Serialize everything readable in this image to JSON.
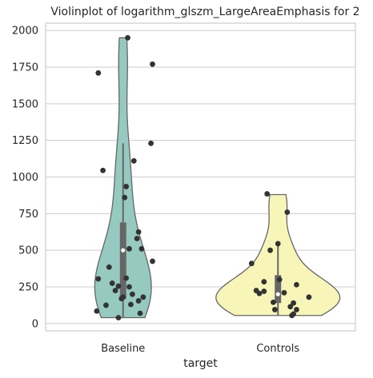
{
  "chart_data": {
    "type": "violin",
    "title": "Violinplot of logarithm_glszm_LargeAreaEmphasis for 2",
    "xlabel": "target",
    "ylabel": "",
    "categories": [
      "Baseline",
      "Controls"
    ],
    "y_ticks": [
      0,
      250,
      500,
      750,
      1000,
      1250,
      1500,
      1750,
      2000
    ],
    "ylim": [
      -50,
      2050
    ],
    "grid": "horizontal",
    "colors": {
      "Baseline": "#96cac0",
      "Controls": "#f7f6b8",
      "outline": "#666666",
      "points": "#333333",
      "grid": "#cccccc",
      "spine": "#cccccc"
    },
    "series": [
      {
        "name": "Baseline",
        "range": [
          40,
          1950
        ],
        "box": {
          "q1": 170,
          "median": 500,
          "q3": 690,
          "whisker_low": 40,
          "whisker_high": 1230
        },
        "points": [
          [
            0.03,
            1950
          ],
          [
            -0.16,
            1710
          ],
          [
            0.19,
            1770
          ],
          [
            0.18,
            1230
          ],
          [
            0.07,
            1110
          ],
          [
            -0.13,
            1045
          ],
          [
            0.02,
            935
          ],
          [
            0.01,
            860
          ],
          [
            0.1,
            625
          ],
          [
            0.09,
            580
          ],
          [
            0.04,
            510
          ],
          [
            0.12,
            510
          ],
          [
            0.19,
            425
          ],
          [
            -0.09,
            385
          ],
          [
            -0.16,
            305
          ],
          [
            0.02,
            310
          ],
          [
            -0.07,
            275
          ],
          [
            -0.03,
            255
          ],
          [
            0.04,
            250
          ],
          [
            -0.05,
            225
          ],
          [
            0.06,
            200
          ],
          [
            0.0,
            180
          ],
          [
            0.13,
            180
          ],
          [
            -0.01,
            170
          ],
          [
            0.1,
            155
          ],
          [
            -0.11,
            125
          ],
          [
            0.05,
            130
          ],
          [
            -0.17,
            85
          ],
          [
            0.11,
            70
          ],
          [
            -0.03,
            40
          ]
        ]
      },
      {
        "name": "Controls",
        "range": [
          55,
          880
        ],
        "box": {
          "q1": 140,
          "median": 200,
          "q3": 330,
          "whisker_low": 55,
          "whisker_high": 540
        },
        "points": [
          [
            -0.07,
            885
          ],
          [
            0.06,
            760
          ],
          [
            0.0,
            545
          ],
          [
            -0.05,
            500
          ],
          [
            -0.17,
            410
          ],
          [
            0.01,
            300
          ],
          [
            -0.09,
            285
          ],
          [
            0.12,
            265
          ],
          [
            -0.14,
            225
          ],
          [
            -0.09,
            220
          ],
          [
            -0.12,
            205
          ],
          [
            0.04,
            210
          ],
          [
            0.2,
            180
          ],
          [
            -0.03,
            145
          ],
          [
            0.1,
            140
          ],
          [
            0.08,
            115
          ],
          [
            -0.02,
            95
          ],
          [
            0.12,
            95
          ],
          [
            0.1,
            65
          ],
          [
            0.09,
            55
          ]
        ]
      }
    ]
  }
}
